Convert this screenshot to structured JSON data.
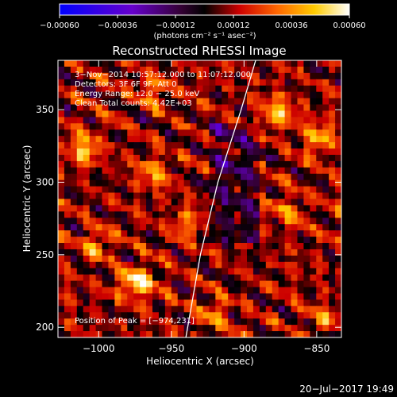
{
  "chart_data": {
    "type": "heatmap",
    "title": "Reconstructed RHESSI Image",
    "xlabel": "Heliocentric X (arcsec)",
    "ylabel": "Heliocentric Y (arcsec)",
    "xlim": [
      -1028,
      -833
    ],
    "ylim": [
      193,
      384
    ],
    "x_ticks": [
      -1000,
      -950,
      -900,
      -850
    ],
    "x_tick_labels": [
      "−1000",
      "−950",
      "−900",
      "−850"
    ],
    "y_ticks": [
      200,
      250,
      300,
      350
    ],
    "y_tick_labels": [
      "200",
      "250",
      "300",
      "350"
    ],
    "colorbar": {
      "min": -0.0006,
      "max": 0.0006,
      "ticks": [
        -0.0006,
        -0.00036,
        -0.00012,
        0.00012,
        0.00036,
        0.0006
      ],
      "tick_labels": [
        "−0.00060",
        "−0.00036",
        "−0.00012",
        "0.00012",
        "0.00036",
        "0.00060"
      ],
      "unit_label": "(photons cm⁻² s⁻¹ asec⁻²)",
      "colors": [
        "#0000ff",
        "#6600cc",
        "#330033",
        "#000000",
        "#cc0000",
        "#ff6600",
        "#ffcc00",
        "#ffffff"
      ]
    },
    "annotations": [
      "3−Nov−2014 10:57:12.000 to 11:07:12.000",
      "Detectors: 3F 6F 9F, Att 0",
      "Energy Range: 12.0 − 25.0 keV",
      "Clean     Total counts: 4.42E+03"
    ],
    "peak_label": "Position of Peak = [−974,231]",
    "peak": {
      "x": -974,
      "y": 231
    },
    "limb": [
      [
        -940,
        193
      ],
      [
        -930,
        250
      ],
      [
        -918,
        300
      ],
      [
        -902,
        350
      ],
      [
        -892,
        384
      ]
    ],
    "grid": false,
    "image_grid": {
      "nx": 45,
      "ny": 44
    }
  },
  "timestamp": "20−Jul−2017 19:49"
}
